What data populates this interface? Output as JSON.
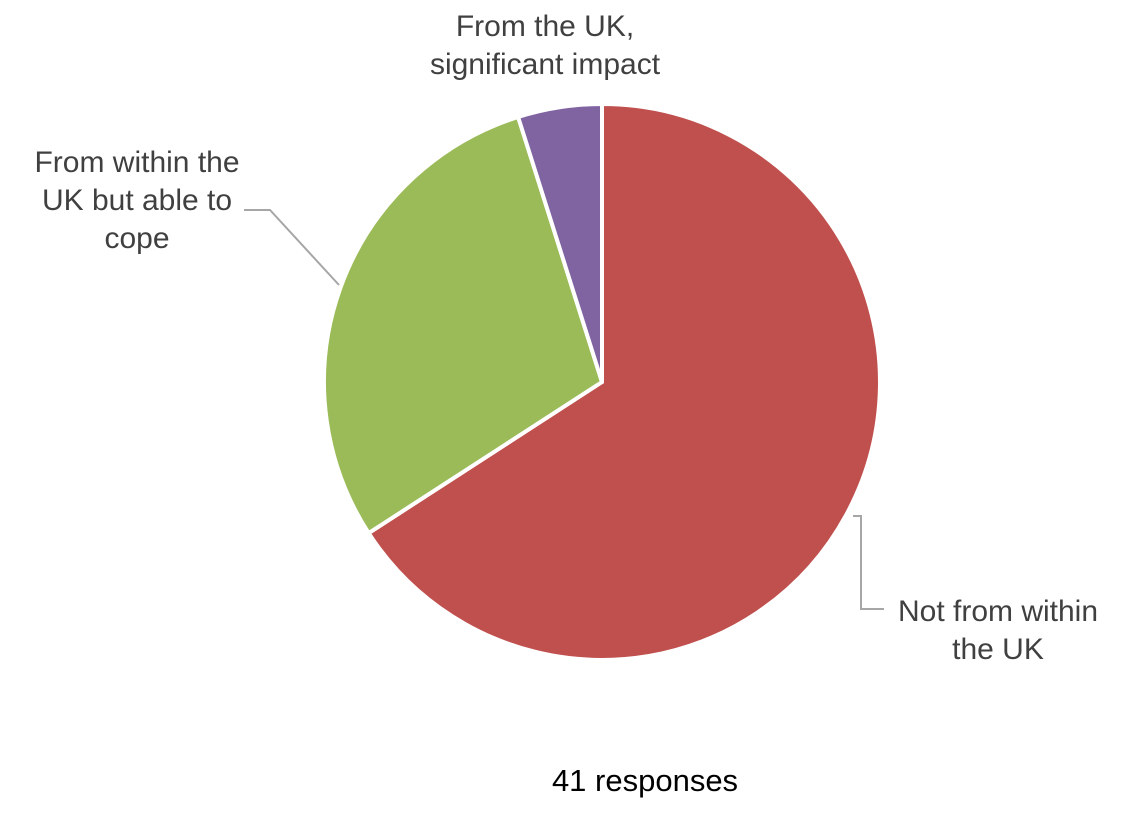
{
  "chart_data": {
    "type": "pie",
    "title": "",
    "slices": [
      {
        "label": "Not from within the UK",
        "value": 27,
        "color": "#C0504D"
      },
      {
        "label": "From within the UK but able to cope",
        "value": 12,
        "color": "#9BBB59"
      },
      {
        "label": "From the UK, significant impact",
        "value": 2,
        "color": "#8064A2"
      }
    ],
    "start": "12 o'clock",
    "direction": "clockwise",
    "legend": "none",
    "data_labels": "category names with leader lines",
    "note": "41 responses"
  }
}
